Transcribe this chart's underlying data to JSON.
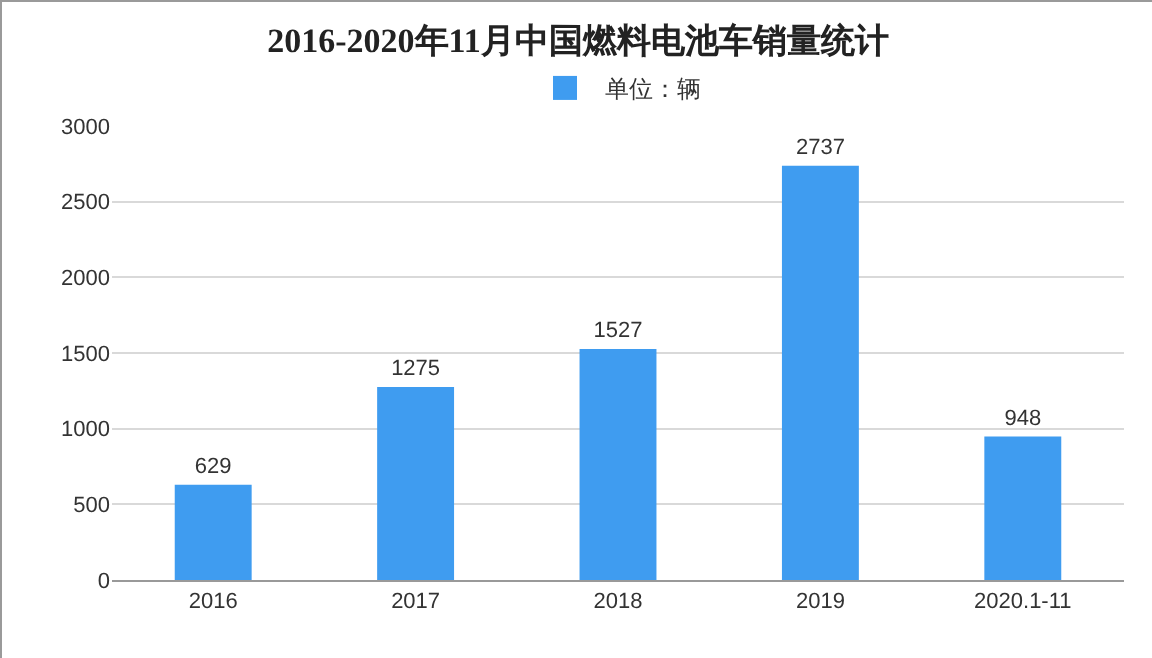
{
  "chart_data": {
    "type": "bar",
    "title": "2016-2020年11月中国燃料电池车销量统计",
    "categories": [
      "2016",
      "2017",
      "2018",
      "2019",
      "2020.1-11"
    ],
    "series": [
      {
        "name": "单位：辆",
        "color": "#3f9cf0",
        "values": [
          629,
          1275,
          1527,
          2737,
          948
        ]
      }
    ],
    "ylim": [
      0,
      3000
    ],
    "yticks": [
      0,
      500,
      1000,
      1500,
      2000,
      2500,
      3000
    ],
    "grid": "y",
    "legend": "top",
    "data_labels": true
  }
}
